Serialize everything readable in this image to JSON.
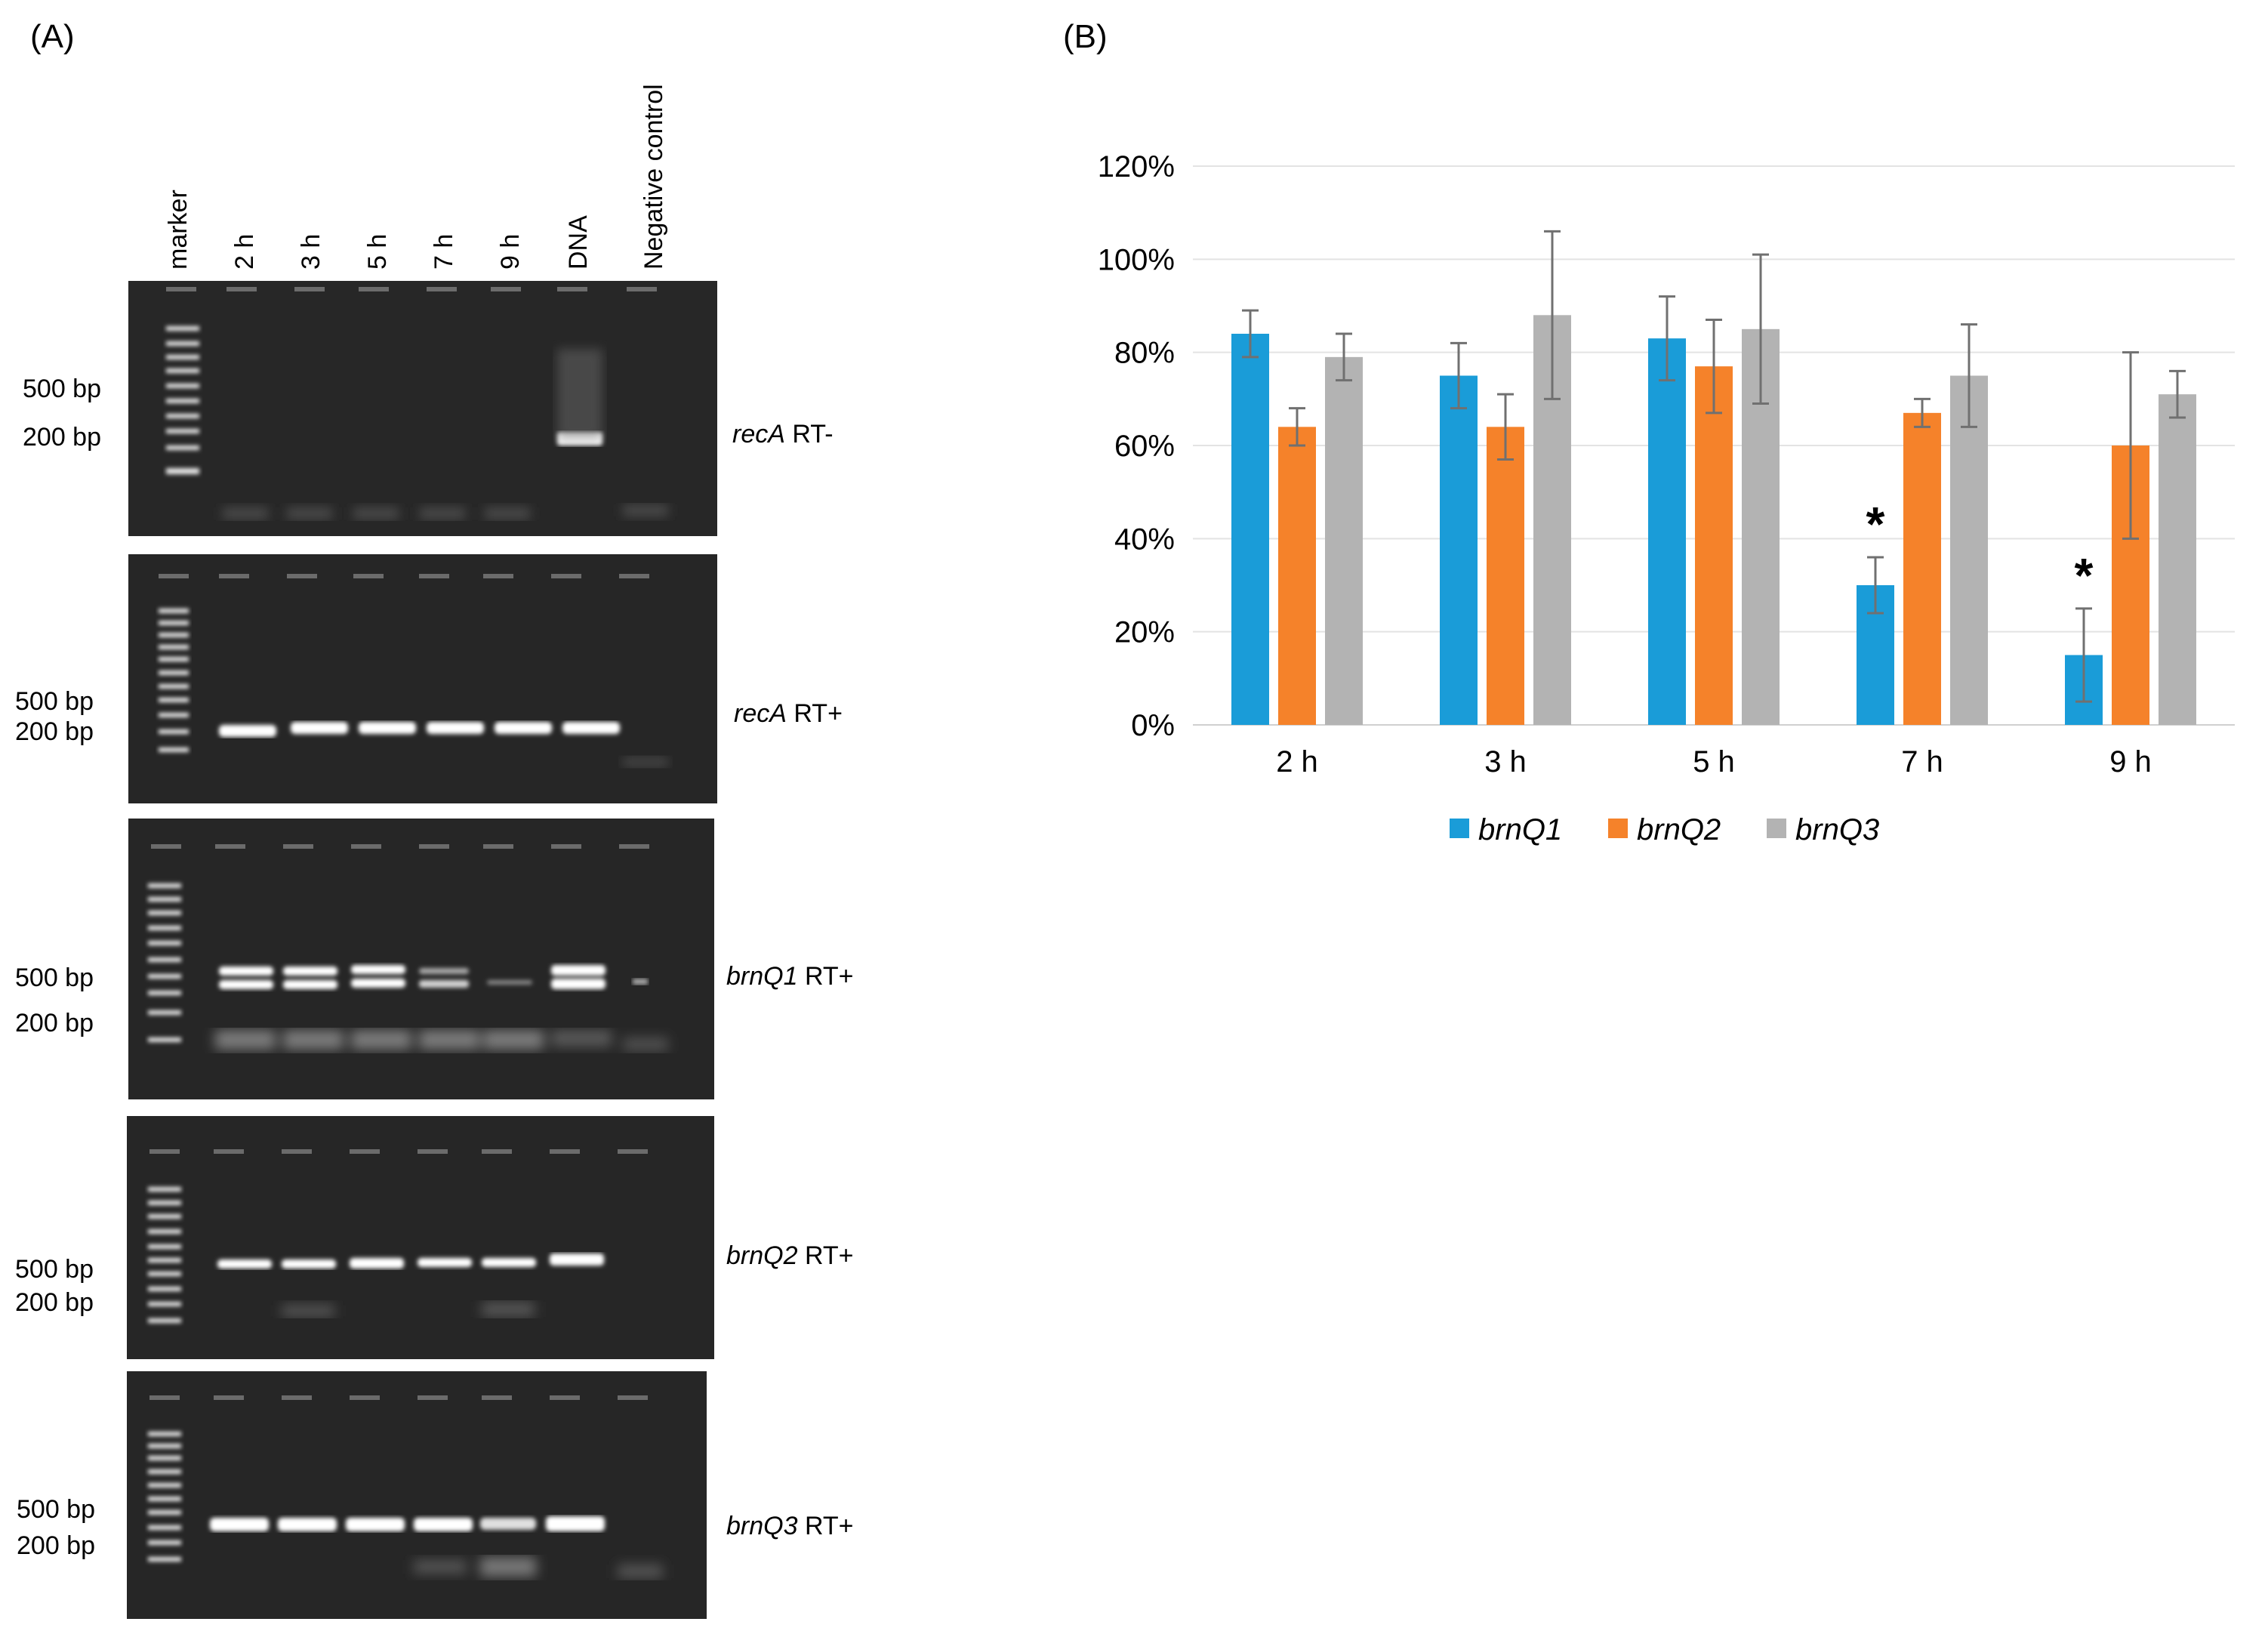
{
  "panels": {
    "a_label": "(A)",
    "b_label": "(B)"
  },
  "lanes": [
    "marker",
    "2 h",
    "3 h",
    "5 h",
    "7 h",
    "9 h",
    "DNA",
    "Negative control"
  ],
  "gels": [
    {
      "gene": "recA",
      "suffix": " RT-",
      "bp_top": "500 bp",
      "bp_bottom": "200 bp"
    },
    {
      "gene": "recA",
      "suffix": " RT+",
      "bp_top": "500 bp",
      "bp_bottom": "200 bp"
    },
    {
      "gene": "brnQ1",
      "suffix": " RT+",
      "bp_top": "500 bp",
      "bp_bottom": "200 bp"
    },
    {
      "gene": "brnQ2",
      "suffix": " RT+",
      "bp_top": "500 bp",
      "bp_bottom": "200 bp"
    },
    {
      "gene": "brnQ3",
      "suffix": " RT+",
      "bp_top": "500 bp",
      "bp_bottom": "200 bp"
    }
  ],
  "chart_data": {
    "type": "bar",
    "categories": [
      "2 h",
      "3 h",
      "5 h",
      "7 h",
      "9 h"
    ],
    "series": [
      {
        "name": "brnQ1",
        "color": "#1a9cd8",
        "values": [
          84,
          75,
          83,
          30,
          15
        ],
        "errors": [
          5,
          7,
          9,
          6,
          10
        ]
      },
      {
        "name": "brnQ2",
        "color": "#f5822a",
        "values": [
          64,
          64,
          77,
          67,
          60
        ],
        "errors": [
          4,
          7,
          10,
          3,
          20
        ]
      },
      {
        "name": "brnQ3",
        "color": "#b3b3b3",
        "values": [
          79,
          88,
          85,
          75,
          71
        ],
        "errors": [
          5,
          18,
          16,
          11,
          5
        ]
      }
    ],
    "ylim": [
      0,
      120
    ],
    "yticks": [
      "0%",
      "20%",
      "40%",
      "60%",
      "80%",
      "100%",
      "120%"
    ],
    "grid": true,
    "legend": "bottom",
    "annotations": [
      {
        "category": "7 h",
        "series": "brnQ1",
        "text": "*"
      },
      {
        "category": "9 h",
        "series": "brnQ1",
        "text": "*"
      }
    ]
  }
}
